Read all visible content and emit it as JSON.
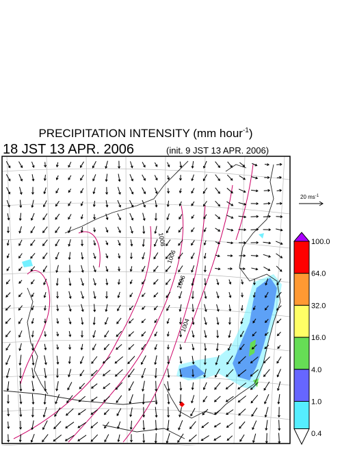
{
  "header": {
    "title": "PRECIPITATION INTENSITY (mm hour",
    "title_exponent": "-1",
    "title_end": ")",
    "valid_time": "18 JST 13 APR. 2006",
    "init_time": "(init. 9 JST 13 APR. 2006)"
  },
  "wind_legend": {
    "label": "20 ms",
    "exponent": "-1"
  },
  "isobar_labels": [
    "1008",
    "1006",
    "1006",
    "1004"
  ],
  "colorbar": {
    "items": [
      {
        "label": "100.0",
        "color": "#ff0000"
      },
      {
        "label": "64.0",
        "color": "#ff9933"
      },
      {
        "label": "32.0",
        "color": "#ffff66"
      },
      {
        "label": "16.0",
        "color": "#66dd55"
      },
      {
        "label": "4.0",
        "color": "#6666ff"
      },
      {
        "label": "1.0",
        "color": "#55eeff"
      },
      {
        "label": "0.4",
        "color": "#ffffff"
      }
    ],
    "over_color": "#aa00ff"
  }
}
